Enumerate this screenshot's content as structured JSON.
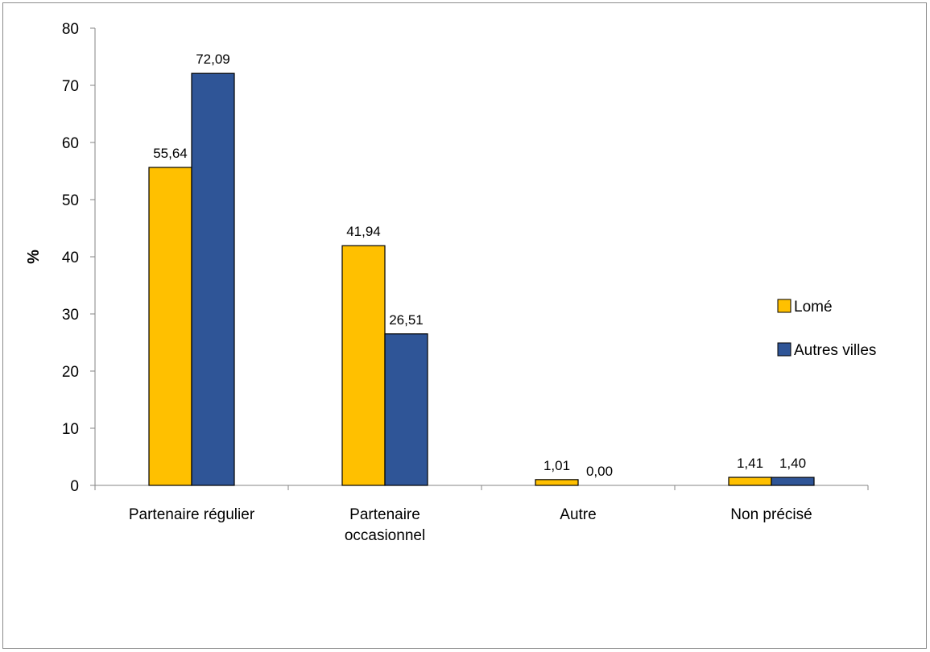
{
  "chart_data": {
    "type": "bar",
    "title": "",
    "xlabel": "",
    "ylabel": "%",
    "ylim": [
      0,
      80
    ],
    "yticks": [
      0,
      10,
      20,
      30,
      40,
      50,
      60,
      70,
      80
    ],
    "grid": false,
    "legend_position": "right",
    "categories": [
      [
        "Partenaire régulier"
      ],
      [
        "Partenaire",
        "occasionnel"
      ],
      [
        "Autre"
      ],
      [
        "Non précisé"
      ]
    ],
    "series": [
      {
        "name": "Lomé",
        "color": "#FFC000",
        "values": [
          55.64,
          41.94,
          1.01,
          1.41
        ],
        "labels": [
          "55,64",
          "41,94",
          "1,01",
          "1,41"
        ]
      },
      {
        "name": "Autres villes",
        "color": "#2F5597",
        "values": [
          72.09,
          26.51,
          0.0,
          1.4
        ],
        "labels": [
          "72,09",
          "26,51",
          "0,00",
          "1,40"
        ]
      }
    ]
  }
}
